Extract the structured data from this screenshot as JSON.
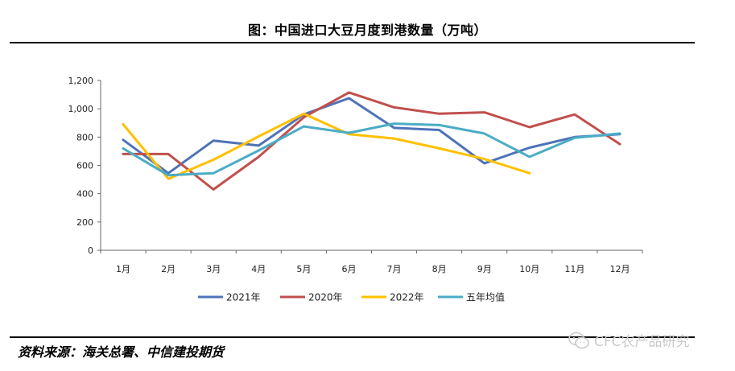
{
  "title": "图：中国进口大豆月度到港数量（万吨）",
  "source": "资料来源：海关总署、中信建投期货",
  "watermark": "CFC农产品研究",
  "chart_data": {
    "type": "line",
    "categories": [
      "1月",
      "2月",
      "3月",
      "4月",
      "5月",
      "6月",
      "7月",
      "8月",
      "9月",
      "10月",
      "11月",
      "12月"
    ],
    "ylim": [
      0,
      1200
    ],
    "yticks": [
      0,
      200,
      400,
      600,
      800,
      1000,
      1200
    ],
    "ytick_labels": [
      "0",
      "200",
      "400",
      "600",
      "800",
      "1,000",
      "1,200"
    ],
    "grid": false,
    "legend_position": "bottom",
    "series": [
      {
        "name": "2021年",
        "color": "#4e73b8",
        "values": [
          780,
          545,
          775,
          740,
          960,
          1075,
          865,
          850,
          615,
          725,
          800,
          820
        ]
      },
      {
        "name": "2020年",
        "color": "#c0504d",
        "values": [
          680,
          680,
          430,
          660,
          940,
          1115,
          1010,
          965,
          975,
          870,
          960,
          750
        ]
      },
      {
        "name": "2022年",
        "color": "#ffc000",
        "values": [
          890,
          505,
          640,
          805,
          965,
          820,
          790,
          720,
          645,
          545,
          null,
          null
        ]
      },
      {
        "name": "五年均值",
        "color": "#4bacc6",
        "values": [
          720,
          530,
          545,
          705,
          875,
          830,
          895,
          885,
          825,
          660,
          795,
          825
        ]
      }
    ]
  }
}
